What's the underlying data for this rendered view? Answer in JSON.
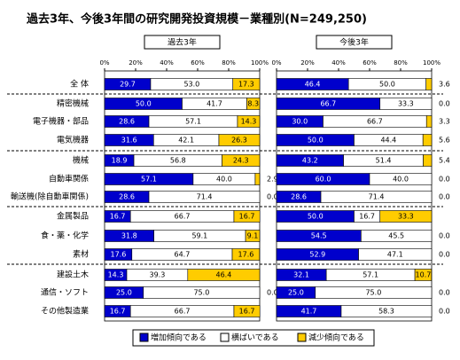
{
  "chart_data": {
    "type": "bar",
    "stacked": true,
    "title": "過去3年、今後3年間の研究開発投資規模－業種別(N=249,250)",
    "categories": [
      "全 体",
      "精密機械",
      "電子機器・部品",
      "電気機器",
      "機械",
      "自動車関係",
      "輸送機(除自動車関係)",
      "金属製品",
      "食・薬・化学",
      "素材",
      "建設土木",
      "通信・ソフト",
      "その他製造業"
    ],
    "xlim": [
      0,
      100
    ],
    "xticks": [
      {
        "value": 0,
        "label": "0%"
      },
      {
        "value": 20,
        "label": "20%"
      },
      {
        "value": 40,
        "label": "40%"
      },
      {
        "value": 60,
        "label": "60%"
      },
      {
        "value": 80,
        "label": "80%"
      },
      {
        "value": 100,
        "label": "100%"
      }
    ],
    "series": [
      {
        "name": "増加傾向である",
        "color": "#0000cc"
      },
      {
        "name": "横ばいである",
        "color": "#ffffff"
      },
      {
        "name": "減少傾向である",
        "color": "#ffcc00"
      }
    ],
    "panels": [
      {
        "title": "過去3年",
        "series": [
          {
            "values": [
              29.7,
              50,
              28.6,
              31.6,
              18.9,
              57.1,
              28.6,
              16.7,
              31.8,
              17.6,
              14.3,
              25,
              16.7
            ],
            "value_labels": [
              "29.7",
              "50.0",
              "28.6",
              "31.6",
              "18.9",
              "57.1",
              "28.6",
              "16.7",
              "31.8",
              "17.6",
              "14.3",
              "25.0",
              "16.7"
            ]
          },
          {
            "values": [
              53,
              41.7,
              57.1,
              42.1,
              56.8,
              40,
              71.4,
              66.7,
              59.1,
              64.7,
              39.3,
              75,
              66.7
            ],
            "value_labels": [
              "53.0",
              "41.7",
              "57.1",
              "42.1",
              "56.8",
              "40.0",
              "71.4",
              "66.7",
              "59.1",
              "64.7",
              "39.3",
              "75.0",
              "66.7"
            ]
          },
          {
            "values": [
              17.3,
              8.3,
              14.3,
              26.3,
              24.3,
              2.9,
              0,
              16.7,
              9.1,
              17.6,
              46.4,
              0,
              16.7
            ],
            "value_labels": [
              "17.3",
              "8.3",
              "14.3",
              "26.3",
              "24.3",
              "2.9",
              "0.0",
              "16.7",
              "9.1",
              "17.6",
              "46.4",
              "0.0",
              "16.7"
            ]
          }
        ]
      },
      {
        "title": "今後3年",
        "series": [
          {
            "values": [
              46.4,
              66.7,
              30,
              50,
              43.2,
              60,
              28.6,
              50,
              54.5,
              52.9,
              32.1,
              25,
              41.7
            ],
            "value_labels": [
              "46.4",
              "66.7",
              "30.0",
              "50.0",
              "43.2",
              "60.0",
              "28.6",
              "50.0",
              "54.5",
              "52.9",
              "32.1",
              "25.0",
              "41.7"
            ]
          },
          {
            "values": [
              50,
              33.3,
              66.7,
              44.4,
              51.4,
              40,
              71.4,
              16.7,
              45.5,
              47.1,
              57.1,
              75,
              58.3
            ],
            "value_labels": [
              "50.0",
              "33.3",
              "66.7",
              "44.4",
              "51.4",
              "40.0",
              "71.4",
              "16.7",
              "45.5",
              "47.1",
              "57.1",
              "75.0",
              "58.3"
            ]
          },
          {
            "values": [
              3.6,
              0,
              3.3,
              5.6,
              5.4,
              0,
              0,
              33.3,
              0,
              0,
              10.7,
              0,
              0
            ],
            "value_labels": [
              "3.6",
              "0.0",
              "3.3",
              "5.6",
              "5.4",
              "0.0",
              "0.0",
              "33.3",
              "0.0",
              "0.0",
              "10.7",
              "0.0",
              "0.0"
            ]
          }
        ]
      }
    ]
  }
}
